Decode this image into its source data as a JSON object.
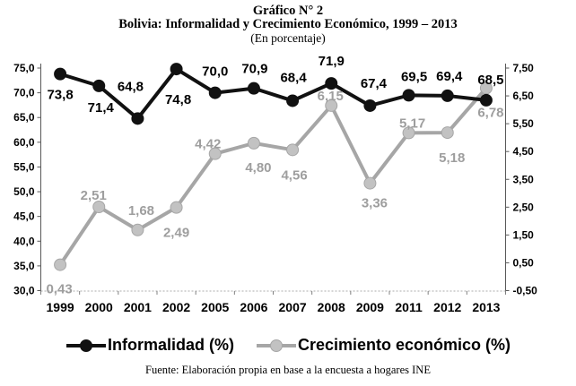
{
  "title": {
    "line1": "Gráfico N° 2",
    "line2": "Bolivia: Informalidad y Crecimiento Económico, 1999 – 2013",
    "line3": "(En porcentaje)"
  },
  "source_note": "Fuente: Elaboración propia en base a la encuesta a hogares INE",
  "legend": {
    "items": [
      {
        "label": "Informalidad (%)"
      },
      {
        "label": "Crecimiento económico (%)"
      }
    ]
  },
  "chart_data": {
    "type": "line",
    "categories": [
      "1999",
      "2000",
      "2001",
      "2002",
      "2005",
      "2006",
      "2007",
      "2008",
      "2009",
      "2011",
      "2012",
      "2013"
    ],
    "series": [
      {
        "id": "informalidad",
        "name": "Informalidad (%)",
        "axis": "left",
        "color": "#111111",
        "marker_fill": "#111111",
        "label_color": "#000000",
        "values": [
          73.8,
          71.4,
          64.8,
          74.8,
          70.0,
          70.9,
          68.4,
          71.9,
          67.4,
          69.5,
          69.4,
          68.5
        ],
        "labels": [
          "73,8",
          "71,4",
          "64,8",
          "74,8",
          "70,0",
          "70,9",
          "68,4",
          "71,9",
          "67,4",
          "69,5",
          "69,4",
          "68,5"
        ],
        "label_positions": [
          "below",
          "below",
          "above",
          "below",
          "above",
          "above",
          "above",
          "above",
          "above",
          "above",
          "above",
          "above"
        ],
        "label_offsets": [
          [
            0,
            28
          ],
          [
            2,
            29
          ],
          [
            -8,
            -31
          ],
          [
            2,
            39
          ],
          [
            0,
            -19
          ],
          [
            1,
            -17
          ],
          [
            1,
            -21
          ],
          [
            0,
            -20
          ],
          [
            4,
            -20
          ],
          [
            6,
            -16
          ],
          [
            2,
            -17
          ],
          [
            5,
            -18
          ]
        ]
      },
      {
        "id": "crecimiento",
        "name": "Crecimiento económico (%)",
        "axis": "right",
        "color": "#a6a6a6",
        "marker_fill": "#c2c2c2",
        "label_color": "#9e9e9e",
        "values": [
          0.43,
          2.51,
          1.68,
          2.49,
          4.42,
          4.8,
          4.56,
          6.15,
          3.36,
          5.17,
          5.18,
          6.78
        ],
        "labels": [
          "0,43",
          "2,51",
          "1,68",
          "2,49",
          "4,42",
          "4,80",
          "4,56",
          "6,15",
          "3,36",
          "5,17",
          "5,18",
          "6,78"
        ],
        "label_positions": [
          "below",
          "above",
          "above",
          "below",
          "above",
          "below",
          "below",
          "above",
          "below",
          "above",
          "below",
          "below"
        ],
        "label_offsets": [
          [
            -1,
            32
          ],
          [
            -6,
            -8
          ],
          [
            4,
            -17
          ],
          [
            0,
            33
          ],
          [
            -8,
            -6
          ],
          [
            5,
            32
          ],
          [
            2,
            33
          ],
          [
            -1,
            -6
          ],
          [
            5,
            27
          ],
          [
            4,
            -6
          ],
          [
            5,
            33
          ],
          [
            5,
            32
          ]
        ]
      }
    ],
    "left_axis": {
      "min": 30,
      "max": 75,
      "step": 5,
      "tick_labels": [
        "75,0",
        "70,0",
        "65,0",
        "60,0",
        "55,0",
        "50,0",
        "45,0",
        "40,0",
        "35,0",
        "30,0"
      ]
    },
    "right_axis": {
      "min": -0.5,
      "max": 7.5,
      "step": 1,
      "tick_labels": [
        "7,50",
        "6,50",
        "5,50",
        "4,50",
        "3,50",
        "2,50",
        "1,50",
        "0,50",
        "-0,50"
      ]
    },
    "grid": false,
    "legend_position": "bottom"
  }
}
